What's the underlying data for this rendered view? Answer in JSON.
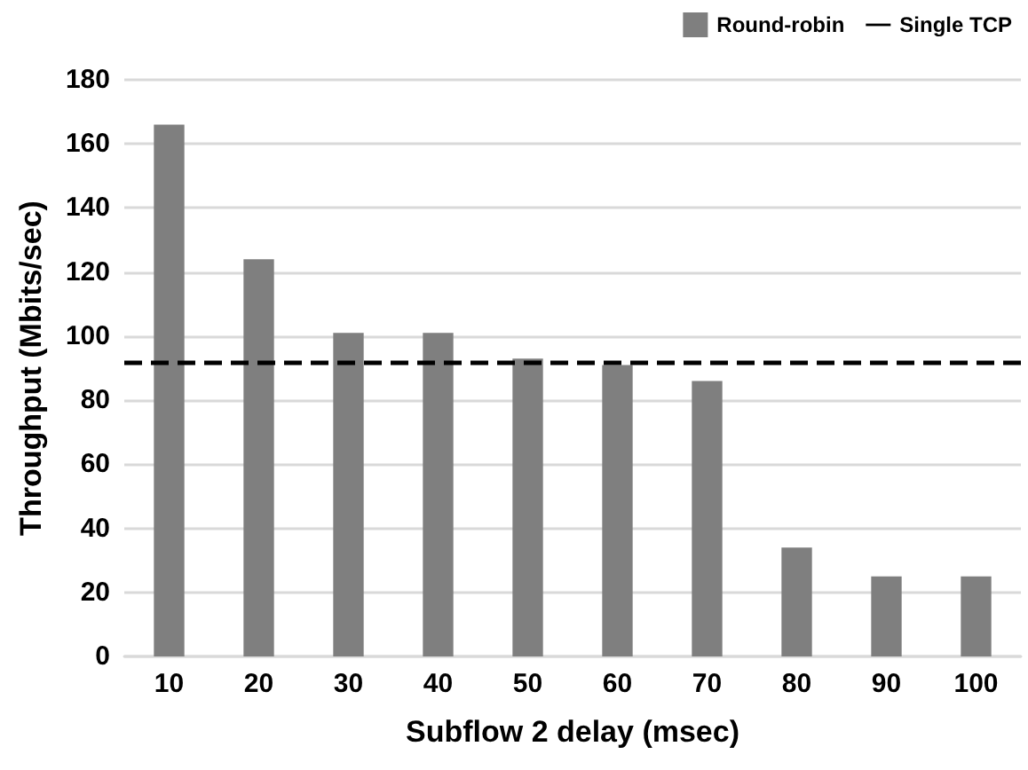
{
  "chart_data": {
    "type": "bar",
    "xlabel": "Subflow 2 delay (msec)",
    "ylabel": "Throughput (Mbits/sec)",
    "categories": [
      "10",
      "20",
      "30",
      "40",
      "50",
      "60",
      "70",
      "80",
      "90",
      "100"
    ],
    "series": [
      {
        "name": "Round-robin",
        "color": "#7f7f7f",
        "values": [
          166,
          124,
          101,
          101,
          93,
          91,
          86,
          34,
          25,
          25
        ]
      }
    ],
    "ref_lines": [
      {
        "axis": "y",
        "value": 92,
        "label": "Single TCP",
        "color": "#000000",
        "line_style": "dashed"
      }
    ],
    "ylim": [
      0,
      180
    ],
    "yticks": [
      0,
      20,
      40,
      60,
      80,
      100,
      120,
      140,
      160,
      180
    ],
    "grid": "y",
    "legend": "top right"
  }
}
